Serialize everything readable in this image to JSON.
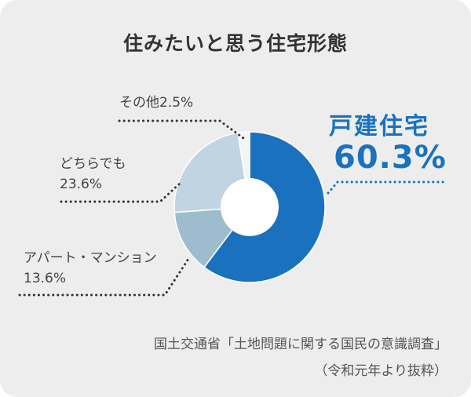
{
  "chart_data": {
    "type": "pie",
    "title": "住みたいと思う住宅形態",
    "donut": true,
    "categories": [
      "戸建住宅",
      "アパート・マンション",
      "どちらでも",
      "その他"
    ],
    "values": [
      60.3,
      13.6,
      23.6,
      2.5
    ],
    "value_labels": [
      "60.3%",
      "13.6%",
      "23.6%",
      "2.5%"
    ],
    "colors": [
      "#1a72bf",
      "#9dbdcf",
      "#c0d5e1",
      "#f2f4f5"
    ]
  },
  "labels": {
    "detached": {
      "name": "戸建住宅",
      "value": "60.3%"
    },
    "apartment": {
      "name": "アパート・マンション",
      "value": "13.6%"
    },
    "either": {
      "name": "どちらでも",
      "value": "23.6%"
    },
    "other": {
      "text": "その他2.5%"
    }
  },
  "source": {
    "line1": "国土交通省「土地問題に関する国民の意識調査」",
    "line2": "（令和元年より抜粋）"
  },
  "colors": {
    "background": "#ededee",
    "accent": "#1a72bf",
    "leader_dots": "#333333"
  }
}
